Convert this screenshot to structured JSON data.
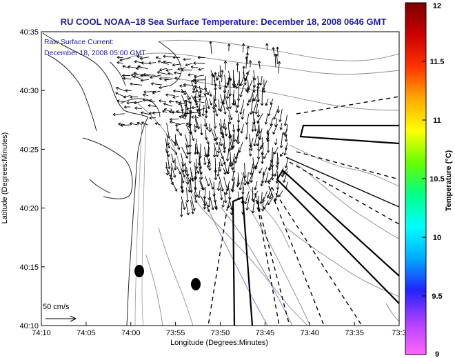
{
  "title": "RU COOL  NOAA–18  Sea Surface Temperature:  December 18, 2008 0646 GMT",
  "current_note": {
    "line1": "Raw Surface Current:",
    "line2": "December 18, 2008 05:00 GMT"
  },
  "axes": {
    "xlabel": "Longitude (Degrees:Minutes)",
    "ylabel": "Latitude (Degrees:Minutes)",
    "x_ticks": [
      {
        "label": "74:10",
        "value": -74.1667
      },
      {
        "label": "74:05",
        "value": -74.0833
      },
      {
        "label": "74:00",
        "value": -74.0
      },
      {
        "label": "73:55",
        "value": -73.9167
      },
      {
        "label": "73:50",
        "value": -73.8333
      },
      {
        "label": "73:45",
        "value": -73.75
      },
      {
        "label": "73:40",
        "value": -73.6667
      },
      {
        "label": "73:35",
        "value": -73.5833
      },
      {
        "label": "73:3",
        "value": -73.5
      }
    ],
    "y_ticks": [
      {
        "label": "40:35",
        "value": 40.5833
      },
      {
        "label": "40:30",
        "value": 40.5
      },
      {
        "label": "40:25",
        "value": 40.4167
      },
      {
        "label": "40:20",
        "value": 40.3333
      },
      {
        "label": "40:15",
        "value": 40.25
      },
      {
        "label": "40:10",
        "value": 40.1667
      }
    ],
    "lon_range": [
      -74.1667,
      -73.5
    ],
    "lat_range": [
      40.1667,
      40.5833
    ]
  },
  "scale_arrow": {
    "label": "50 cm/s"
  },
  "colorbar": {
    "label": "Temperature (°C)",
    "range": [
      9,
      12
    ],
    "ticks": [
      "12",
      "11.5",
      "11",
      "10.5",
      "10",
      "9.5",
      "9"
    ],
    "stops": [
      "#ff66ff",
      "#b040ff",
      "#2222ff",
      "#00aaff",
      "#00ffff",
      "#00ff88",
      "#66ff00",
      "#ffff00",
      "#ffaa00",
      "#ff3300",
      "#cc0000",
      "#7a0000"
    ]
  },
  "colors": {
    "title": "#1a1aa6",
    "coastline": "#222222",
    "bathymetry": "#8c8c8c",
    "deep_contour": "#7a7aaa",
    "arrows": "#000000"
  },
  "features": {
    "markers": [
      "buoy-marker",
      "buoy-marker"
    ],
    "shipping_lanes": [
      "ambrose-lane",
      "hudson-lane",
      "barnegat-lane",
      "sandy-hook-lane"
    ]
  }
}
